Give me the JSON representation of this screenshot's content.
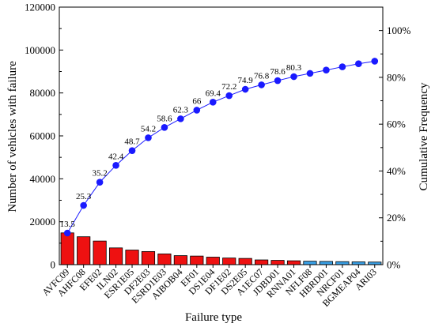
{
  "chart_data": {
    "type": "bar",
    "xlabel": "Failure type",
    "ylabel": "Number of vehicles with failure",
    "y2label": "Cumulative Frequency",
    "categories": [
      "AVFC09",
      "AHFC08",
      "EFE02",
      "ILN02",
      "ESR1E05",
      "DF2E03",
      "ESRD1E03",
      "AIBOB04",
      "EF01",
      "DS1E04",
      "DF1E02",
      "DS2E05",
      "A1EC07",
      "JDBD01",
      "RNNA01",
      "NFLF08",
      "HBRD01",
      "NRCF01",
      "BGMEAP04",
      "ARI03"
    ],
    "series": [
      {
        "values": [
          14800,
          13000,
          11000,
          7800,
          6800,
          6100,
          5000,
          4200,
          4000,
          3500,
          3100,
          2900,
          2200,
          2000,
          1800,
          1600,
          1500,
          1400,
          1300,
          1200
        ],
        "colors": [
          "#ee1111",
          "#ee1111",
          "#ee1111",
          "#ee1111",
          "#ee1111",
          "#ee1111",
          "#ee1111",
          "#ee1111",
          "#ee1111",
          "#ee1111",
          "#ee1111",
          "#ee1111",
          "#ee1111",
          "#ee1111",
          "#ee1111",
          "#3aa0e6",
          "#3aa0e6",
          "#3aa0e6",
          "#3aa0e6",
          "#3aa0e6"
        ]
      },
      {
        "axis": "right",
        "type": "line",
        "values": [
          13.5,
          25.3,
          35.2,
          42.4,
          48.7,
          54.2,
          58.6,
          62.3,
          66,
          69.4,
          72.2,
          74.9,
          76.8,
          78.6,
          80.3,
          81.7,
          83.1,
          84.5,
          85.8,
          86.9
        ],
        "labels": [
          "13.5",
          "25.3",
          "35.2",
          "42.4",
          "48.7",
          "54.2",
          "58.6",
          "62.3",
          "66",
          "69.4",
          "72.2",
          "74.9",
          "76.8",
          "78.6",
          "80.3",
          "",
          "",
          "",
          "",
          ""
        ],
        "color": "#1a1aff"
      }
    ],
    "ylim": [
      0,
      120000
    ],
    "yticks": [
      "0",
      "20000",
      "40000",
      "60000",
      "80000",
      "100000",
      "120000"
    ],
    "y2lim": [
      0,
      110
    ],
    "y2ticks": [
      "0%",
      "20%",
      "40%",
      "60%",
      "80%",
      "100%"
    ],
    "grid": false,
    "legend": "none"
  }
}
